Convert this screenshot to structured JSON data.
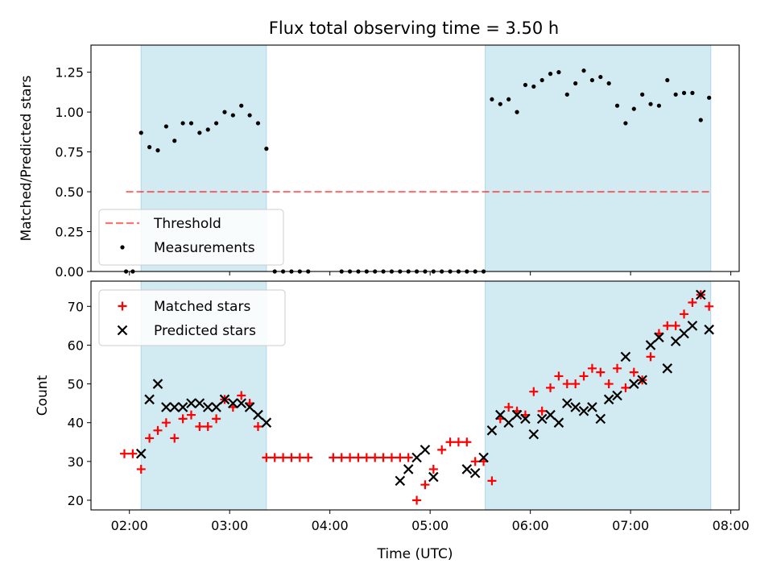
{
  "title": "Flux total observing time = 3.50 h",
  "colors": {
    "shade": "#add8e6",
    "threshold": "#ff0000",
    "measurement": "#000000",
    "matched": "#ff0000",
    "predicted": "#000000"
  },
  "chart_data": [
    {
      "type": "scatter",
      "panel": "top",
      "title": "Flux total observing time = 3.50 h",
      "xlabel": "",
      "ylabel": "Matched/Predicted stars",
      "xlim": [
        "01:37",
        "08:05"
      ],
      "ylim": [
        0,
        1.42
      ],
      "yticks": [
        0.0,
        0.25,
        0.5,
        0.75,
        1.0,
        1.25
      ],
      "ytick_labels": [
        "0.00",
        "0.25",
        "0.50",
        "0.75",
        "1.00",
        "1.25"
      ],
      "grid": false,
      "legend": "lower-left",
      "shaded_spans": [
        [
          "02:07",
          "03:22"
        ],
        [
          "05:33",
          "07:48"
        ]
      ],
      "threshold": {
        "name": "Threshold",
        "value": 0.5,
        "x_range": [
          "01:58",
          "07:48"
        ],
        "style": "dashed"
      },
      "series": [
        {
          "name": "Measurements",
          "x": [
            "01:58",
            "02:02",
            "02:07",
            "02:12",
            "02:17",
            "02:22",
            "02:27",
            "02:32",
            "02:37",
            "02:42",
            "02:47",
            "02:52",
            "02:57",
            "03:02",
            "03:07",
            "03:12",
            "03:17",
            "03:22",
            "03:27",
            "03:32",
            "03:37",
            "03:42",
            "03:47",
            "04:07",
            "04:12",
            "04:17",
            "04:22",
            "04:27",
            "04:32",
            "04:37",
            "04:42",
            "04:47",
            "04:52",
            "04:57",
            "05:02",
            "05:07",
            "05:12",
            "05:17",
            "05:22",
            "05:27",
            "05:32",
            "05:37",
            "05:42",
            "05:47",
            "05:52",
            "05:57",
            "06:02",
            "06:07",
            "06:12",
            "06:17",
            "06:22",
            "06:27",
            "06:32",
            "06:37",
            "06:42",
            "06:47",
            "06:52",
            "06:57",
            "07:02",
            "07:07",
            "07:12",
            "07:17",
            "07:22",
            "07:27",
            "07:32",
            "07:37",
            "07:42",
            "07:47"
          ],
          "y": [
            0.0,
            0.0,
            0.87,
            0.78,
            0.76,
            0.91,
            0.82,
            0.93,
            0.93,
            0.87,
            0.89,
            0.93,
            1.0,
            0.98,
            1.04,
            0.98,
            0.93,
            0.77,
            0.0,
            0.0,
            0.0,
            0.0,
            0.0,
            0.0,
            0.0,
            0.0,
            0.0,
            0.0,
            0.0,
            0.0,
            0.0,
            0.0,
            0.0,
            0.0,
            0.0,
            0.0,
            0.0,
            0.0,
            0.0,
            0.0,
            0.0,
            1.08,
            1.05,
            1.08,
            1.0,
            1.17,
            1.16,
            1.2,
            1.24,
            1.25,
            1.11,
            1.18,
            1.26,
            1.2,
            1.22,
            1.18,
            1.04,
            0.93,
            1.02,
            1.11,
            1.05,
            1.04,
            1.2,
            1.11,
            1.12,
            1.12,
            0.95,
            1.09
          ]
        }
      ]
    },
    {
      "type": "scatter",
      "panel": "bottom",
      "xlabel": "Time (UTC)",
      "ylabel": "Count",
      "xlim": [
        "01:37",
        "08:05"
      ],
      "ylim": [
        17.5,
        76.5
      ],
      "yticks": [
        20,
        30,
        40,
        50,
        60,
        70
      ],
      "xticks": [
        "02:00",
        "03:00",
        "04:00",
        "05:00",
        "06:00",
        "07:00",
        "08:00"
      ],
      "grid": false,
      "legend": "top-left",
      "shaded_spans": [
        [
          "02:07",
          "03:22"
        ],
        [
          "05:33",
          "07:48"
        ]
      ],
      "series": [
        {
          "name": "Matched stars",
          "marker": "plus",
          "x": [
            "01:57",
            "02:02",
            "02:07",
            "02:12",
            "02:17",
            "02:22",
            "02:27",
            "02:32",
            "02:37",
            "02:42",
            "02:47",
            "02:52",
            "02:57",
            "03:02",
            "03:07",
            "03:12",
            "03:17",
            "03:22",
            "03:27",
            "03:32",
            "03:37",
            "03:42",
            "03:47",
            "04:02",
            "04:07",
            "04:12",
            "04:17",
            "04:22",
            "04:27",
            "04:32",
            "04:37",
            "04:42",
            "04:47",
            "04:52",
            "04:57",
            "05:02",
            "05:07",
            "05:12",
            "05:17",
            "05:22",
            "05:27",
            "05:32",
            "05:37",
            "05:42",
            "05:47",
            "05:52",
            "05:57",
            "06:02",
            "06:07",
            "06:12",
            "06:17",
            "06:22",
            "06:27",
            "06:32",
            "06:37",
            "06:42",
            "06:47",
            "06:52",
            "06:57",
            "07:02",
            "07:07",
            "07:12",
            "07:17",
            "07:22",
            "07:27",
            "07:32",
            "07:37",
            "07:42",
            "07:47"
          ],
          "y": [
            32,
            32,
            28,
            36,
            38,
            40,
            36,
            41,
            42,
            39,
            39,
            41,
            46,
            44,
            47,
            45,
            39,
            31,
            31,
            31,
            31,
            31,
            31,
            31,
            31,
            31,
            31,
            31,
            31,
            31,
            31,
            31,
            31,
            20,
            24,
            28,
            33,
            35,
            35,
            35,
            30,
            30,
            25,
            41,
            44,
            43,
            42,
            48,
            43,
            49,
            52,
            50,
            50,
            52,
            54,
            53,
            50,
            54,
            49,
            53,
            51,
            57,
            63,
            65,
            65,
            68,
            71,
            73,
            70
          ]
        },
        {
          "name": "Predicted stars",
          "marker": "x",
          "x": [
            "02:07",
            "02:12",
            "02:17",
            "02:22",
            "02:27",
            "02:32",
            "02:37",
            "02:42",
            "02:47",
            "02:52",
            "02:57",
            "03:02",
            "03:07",
            "03:12",
            "03:17",
            "03:22",
            "04:42",
            "04:47",
            "04:52",
            "04:57",
            "05:02",
            "05:22",
            "05:27",
            "05:32",
            "05:37",
            "05:42",
            "05:47",
            "05:52",
            "05:57",
            "06:02",
            "06:07",
            "06:12",
            "06:17",
            "06:22",
            "06:27",
            "06:32",
            "06:37",
            "06:42",
            "06:47",
            "06:52",
            "06:57",
            "07:02",
            "07:07",
            "07:12",
            "07:17",
            "07:22",
            "07:27",
            "07:32",
            "07:37",
            "07:42",
            "07:47"
          ],
          "y": [
            32,
            46,
            50,
            44,
            44,
            44,
            45,
            45,
            44,
            44,
            46,
            45,
            45,
            44,
            42,
            40,
            25,
            28,
            31,
            33,
            26,
            28,
            27,
            31,
            38,
            42,
            40,
            42,
            41,
            37,
            41,
            42,
            40,
            45,
            44,
            43,
            44,
            41,
            46,
            47,
            57,
            50,
            51,
            60,
            62,
            54,
            61,
            63,
            65,
            73,
            64
          ]
        }
      ]
    }
  ]
}
